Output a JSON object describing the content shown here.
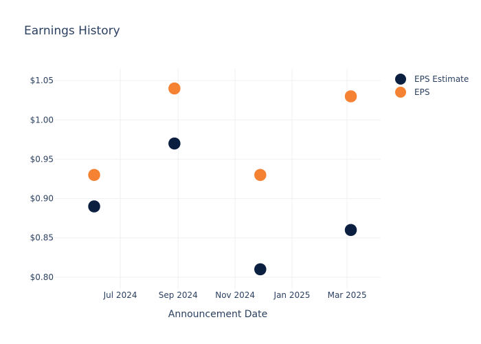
{
  "chart_data": {
    "type": "scatter",
    "title": "Earnings History",
    "xlabel": "Announcement Date",
    "ylabel": "",
    "x_axis_type": "date",
    "x_range": [
      "2024-04-22",
      "2025-04-06"
    ],
    "x_ticks": [
      {
        "date": "2024-07-01",
        "label": "Jul 2024"
      },
      {
        "date": "2024-09-01",
        "label": "Sep 2024"
      },
      {
        "date": "2024-11-01",
        "label": "Nov 2024"
      },
      {
        "date": "2025-01-01",
        "label": "Jan 2025"
      },
      {
        "date": "2025-03-01",
        "label": "Mar 2025"
      }
    ],
    "ylim": [
      0.785,
      1.065
    ],
    "y_ticks": [
      {
        "value": 0.8,
        "label": "$0.80"
      },
      {
        "value": 0.85,
        "label": "$0.85"
      },
      {
        "value": 0.9,
        "label": "$0.90"
      },
      {
        "value": 0.95,
        "label": "$0.95"
      },
      {
        "value": 1.0,
        "label": "$1.00"
      },
      {
        "value": 1.05,
        "label": "$1.05"
      }
    ],
    "grid": true,
    "legend_position": "top-right",
    "series": [
      {
        "name": "EPS Estimate",
        "color": "#0b1f40",
        "points": [
          {
            "x": "2024-06-03",
            "y": 0.89
          },
          {
            "x": "2024-08-28",
            "y": 0.97
          },
          {
            "x": "2024-11-28",
            "y": 0.81
          },
          {
            "x": "2025-03-05",
            "y": 0.86
          }
        ]
      },
      {
        "name": "EPS",
        "color": "#f58232",
        "points": [
          {
            "x": "2024-06-03",
            "y": 0.93
          },
          {
            "x": "2024-08-28",
            "y": 1.04
          },
          {
            "x": "2024-11-28",
            "y": 0.93
          },
          {
            "x": "2025-03-05",
            "y": 1.03
          }
        ]
      }
    ]
  }
}
